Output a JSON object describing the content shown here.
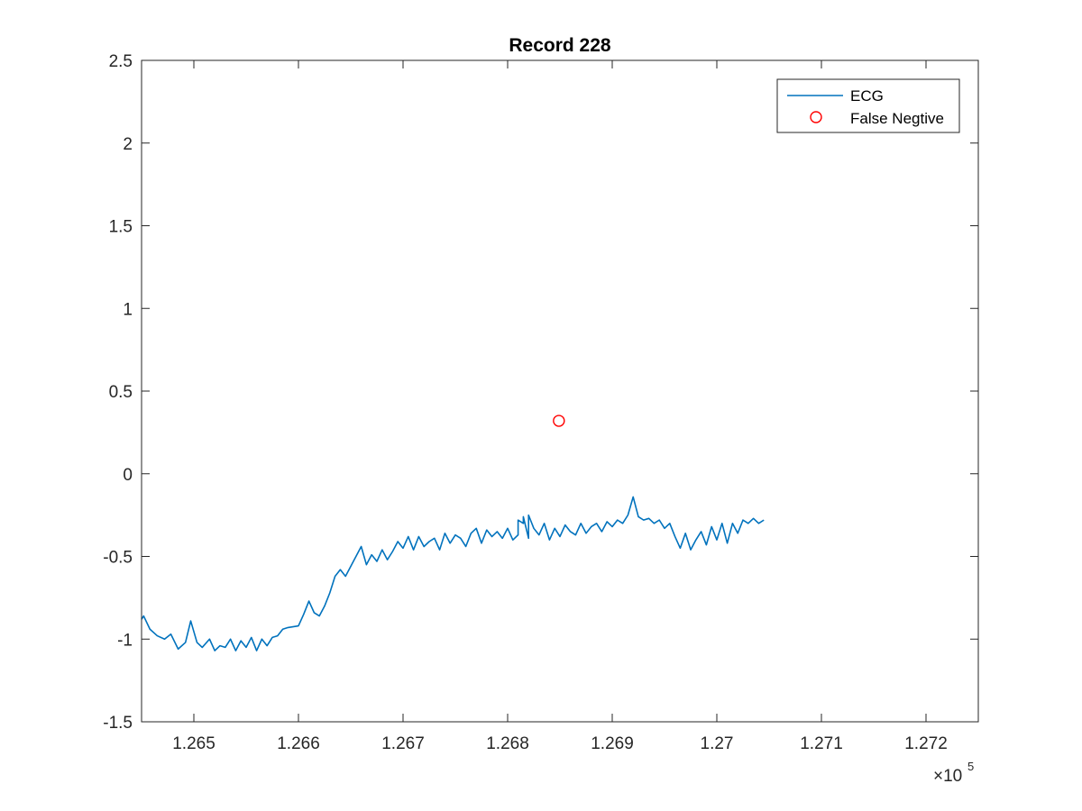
{
  "chart_data": {
    "type": "line",
    "title": "Record 228",
    "xlabel": "",
    "ylabel": "",
    "xlim": [
      1.2645,
      1.2725
    ],
    "ylim": [
      -1.5,
      2.5
    ],
    "x_multiplier_label": "×10",
    "x_multiplier_exponent": "5",
    "xticks": [
      1.265,
      1.266,
      1.267,
      1.268,
      1.269,
      1.27,
      1.271,
      1.272
    ],
    "xtick_labels": [
      "1.265",
      "1.266",
      "1.267",
      "1.268",
      "1.269",
      "1.27",
      "1.271",
      "1.272"
    ],
    "yticks": [
      -1.5,
      -1,
      -0.5,
      0,
      0.5,
      1,
      1.5,
      2,
      2.5
    ],
    "ytick_labels": [
      "-1.5",
      "-1",
      "-0.5",
      "0",
      "0.5",
      "1",
      "1.5",
      "2",
      "2.5"
    ],
    "grid": false,
    "legend": "top-right",
    "colors": {
      "ecg": "#0072BD",
      "marker": "#FF0000"
    },
    "series": [
      {
        "name": "ECG",
        "style": "line",
        "points": [
          [
            1.2645,
            -0.88
          ],
          [
            1.26452,
            -0.86
          ],
          [
            1.26458,
            -0.94
          ],
          [
            1.26465,
            -0.98
          ],
          [
            1.26472,
            -1.0
          ],
          [
            1.26478,
            -0.97
          ],
          [
            1.26485,
            -1.06
          ],
          [
            1.26492,
            -1.02
          ],
          [
            1.26497,
            -0.89
          ],
          [
            1.26503,
            -1.02
          ],
          [
            1.26508,
            -1.05
          ],
          [
            1.26515,
            -1.0
          ],
          [
            1.2652,
            -1.07
          ],
          [
            1.26525,
            -1.04
          ],
          [
            1.2653,
            -1.05
          ],
          [
            1.26535,
            -1.0
          ],
          [
            1.2654,
            -1.07
          ],
          [
            1.26545,
            -1.01
          ],
          [
            1.2655,
            -1.05
          ],
          [
            1.26555,
            -0.99
          ],
          [
            1.2656,
            -1.07
          ],
          [
            1.26565,
            -1.0
          ],
          [
            1.2657,
            -1.04
          ],
          [
            1.26575,
            -0.99
          ],
          [
            1.2658,
            -0.98
          ],
          [
            1.26585,
            -0.94
          ],
          [
            1.2659,
            -0.93
          ],
          [
            1.266,
            -0.92
          ],
          [
            1.26605,
            -0.85
          ],
          [
            1.2661,
            -0.77
          ],
          [
            1.26615,
            -0.84
          ],
          [
            1.2662,
            -0.86
          ],
          [
            1.26625,
            -0.8
          ],
          [
            1.2663,
            -0.72
          ],
          [
            1.26635,
            -0.62
          ],
          [
            1.2664,
            -0.58
          ],
          [
            1.26645,
            -0.62
          ],
          [
            1.2665,
            -0.56
          ],
          [
            1.26655,
            -0.5
          ],
          [
            1.2666,
            -0.44
          ],
          [
            1.26665,
            -0.55
          ],
          [
            1.2667,
            -0.49
          ],
          [
            1.26675,
            -0.53
          ],
          [
            1.2668,
            -0.46
          ],
          [
            1.26685,
            -0.52
          ],
          [
            1.2669,
            -0.47
          ],
          [
            1.26695,
            -0.41
          ],
          [
            1.267,
            -0.45
          ],
          [
            1.26705,
            -0.38
          ],
          [
            1.2671,
            -0.46
          ],
          [
            1.26715,
            -0.38
          ],
          [
            1.2672,
            -0.44
          ],
          [
            1.26725,
            -0.41
          ],
          [
            1.2673,
            -0.39
          ],
          [
            1.26735,
            -0.46
          ],
          [
            1.2674,
            -0.36
          ],
          [
            1.26745,
            -0.42
          ],
          [
            1.2675,
            -0.37
          ],
          [
            1.26755,
            -0.39
          ],
          [
            1.2676,
            -0.44
          ],
          [
            1.26765,
            -0.36
          ],
          [
            1.2677,
            -0.33
          ],
          [
            1.26775,
            -0.42
          ],
          [
            1.2678,
            -0.34
          ],
          [
            1.26785,
            -0.38
          ],
          [
            1.2679,
            -0.35
          ],
          [
            1.26795,
            -0.39
          ],
          [
            1.268,
            -0.33
          ],
          [
            1.26805,
            -0.4
          ],
          [
            1.2681,
            -0.37
          ],
          [
            1.26815,
            -0.3
          ],
          [
            1.2682,
            -0.39
          ],
          [
            1.26825,
            -0.33
          ],
          [
            1.2683,
            -0.37
          ],
          [
            1.26835,
            -0.3
          ],
          [
            1.2684,
            -0.4
          ],
          [
            1.26845,
            -0.33
          ],
          [
            1.2685,
            -0.38
          ],
          [
            1.26855,
            -0.31
          ],
          [
            1.2686,
            -0.35
          ],
          [
            1.26865,
            -0.37
          ],
          [
            1.2687,
            -0.3
          ],
          [
            1.26875,
            -0.36
          ],
          [
            1.2688,
            -0.32
          ],
          [
            1.26885,
            -0.3
          ],
          [
            1.2689,
            -0.35
          ],
          [
            1.26895,
            -0.29
          ],
          [
            1.269,
            -0.32
          ],
          [
            1.26905,
            -0.28
          ],
          [
            1.2691,
            -0.3
          ],
          [
            1.26915,
            -0.25
          ],
          [
            1.2692,
            -0.14
          ],
          [
            1.26925,
            -0.26
          ],
          [
            1.2693,
            -0.28
          ],
          [
            1.26935,
            -0.27
          ],
          [
            1.2694,
            -0.3
          ],
          [
            1.26945,
            -0.28
          ],
          [
            1.2695,
            -0.33
          ],
          [
            1.26955,
            -0.3
          ],
          [
            1.2696,
            -0.38
          ],
          [
            1.26965,
            -0.45
          ],
          [
            1.2697,
            -0.36
          ],
          [
            1.26975,
            -0.46
          ],
          [
            1.2698,
            -0.4
          ],
          [
            1.26985,
            -0.35
          ],
          [
            1.2699,
            -0.43
          ],
          [
            1.26995,
            -0.32
          ],
          [
            1.27,
            -0.4
          ],
          [
            1.27005,
            -0.3
          ],
          [
            1.2701,
            -0.42
          ],
          [
            1.27015,
            -0.3
          ],
          [
            1.2702,
            -0.36
          ],
          [
            1.27025,
            -0.28
          ],
          [
            1.2703,
            -0.3
          ],
          [
            1.27035,
            -0.27
          ],
          [
            1.2704,
            -0.3
          ],
          [
            1.27045,
            -0.28
          ],
          [
            1.2681,
            -0.28
          ],
          [
            1.26815,
            -0.26
          ],
          [
            1.2682,
            -0.25
          ]
        ]
      },
      {
        "name": "False Negtive",
        "style": "marker",
        "points": [
          [
            1.26849,
            0.32
          ]
        ]
      }
    ]
  }
}
